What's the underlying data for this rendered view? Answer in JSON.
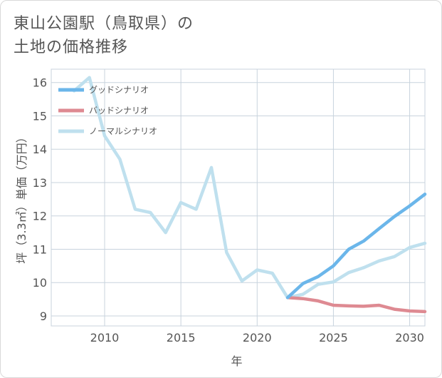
{
  "title_line1": "東山公園駅（鳥取県）の",
  "title_line2": "土地の価格推移",
  "chart_data": {
    "type": "line",
    "xlabel": "年",
    "ylabel": "坪（3.3㎡）単価（万円）",
    "xlim": [
      2006.5,
      2031
    ],
    "ylim": [
      8.7,
      16.4
    ],
    "xticks": [
      2010,
      2015,
      2020,
      2025,
      2030
    ],
    "yticks": [
      9,
      10,
      11,
      12,
      13,
      14,
      15,
      16
    ],
    "grid": true,
    "legend_position": "top-left",
    "series": [
      {
        "name": "グッドシナリオ",
        "color": "#6bb6ea",
        "x": [
          2022,
          2023,
          2024,
          2025,
          2026,
          2027,
          2028,
          2029,
          2030,
          2031
        ],
        "y": [
          9.55,
          9.97,
          10.18,
          10.5,
          11.0,
          11.25,
          11.62,
          11.98,
          12.3,
          12.65
        ]
      },
      {
        "name": "バッドシナリオ",
        "color": "#de8a92",
        "x": [
          2022,
          2023,
          2024,
          2025,
          2026,
          2027,
          2028,
          2029,
          2030,
          2031
        ],
        "y": [
          9.55,
          9.52,
          9.45,
          9.32,
          9.3,
          9.29,
          9.32,
          9.2,
          9.15,
          9.13
        ]
      },
      {
        "name": "ノーマルシナリオ",
        "color": "#bfe0ee",
        "x": [
          2008,
          2009,
          2010,
          2011,
          2012,
          2013,
          2014,
          2015,
          2016,
          2017,
          2018,
          2019,
          2020,
          2021,
          2022,
          2023,
          2024,
          2025,
          2026,
          2027,
          2028,
          2029,
          2030,
          2031
        ],
        "y": [
          15.75,
          16.15,
          14.4,
          13.7,
          12.2,
          12.1,
          11.5,
          12.4,
          12.2,
          13.45,
          10.9,
          10.05,
          10.38,
          10.28,
          9.55,
          9.65,
          9.95,
          10.02,
          10.3,
          10.45,
          10.65,
          10.78,
          11.05,
          11.18
        ]
      }
    ]
  }
}
